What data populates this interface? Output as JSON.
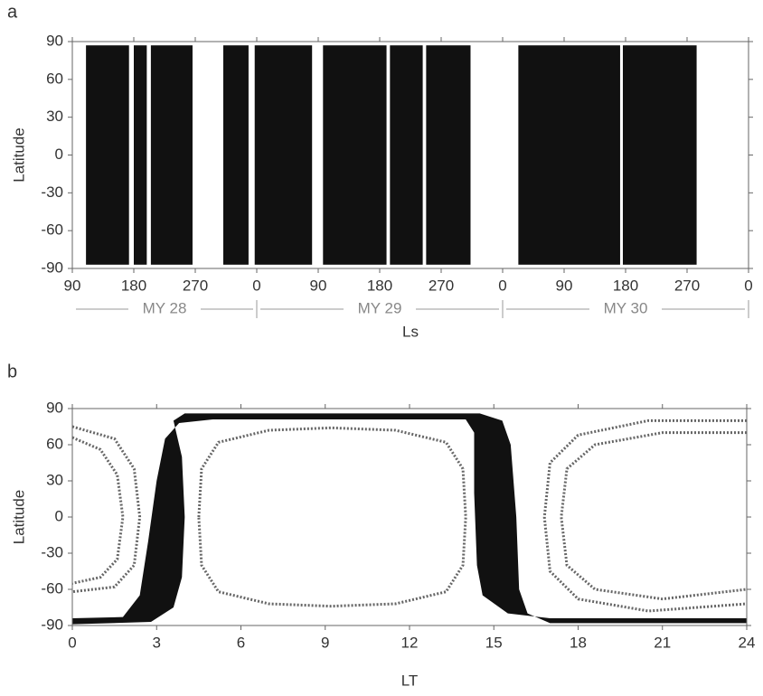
{
  "chart_data": [
    {
      "type": "coverage",
      "panel_label": "a",
      "xlabel": "Ls",
      "ylabel": "Latitude",
      "xlim": [
        90,
        1080
      ],
      "ylim": [
        -90,
        90
      ],
      "xticks": [
        90,
        180,
        270,
        {
          "value": 360,
          "label": "0"
        },
        {
          "value": 450,
          "label": "90"
        },
        {
          "value": 540,
          "label": "180"
        },
        {
          "value": 630,
          "label": "270"
        },
        {
          "value": 720,
          "label": "0"
        },
        {
          "value": 810,
          "label": "90"
        },
        {
          "value": 900,
          "label": "180"
        },
        {
          "value": 990,
          "label": "270"
        },
        {
          "value": 1080,
          "label": "0"
        }
      ],
      "yticks": [
        -90,
        -60,
        -30,
        0,
        30,
        60,
        90
      ],
      "lat_range": [
        -87,
        87
      ],
      "color": "#111",
      "intervals": [
        [
          110,
          173
        ],
        [
          180,
          199
        ],
        [
          205,
          266
        ],
        [
          311,
          348
        ],
        [
          357,
          441
        ],
        [
          457,
          550
        ],
        [
          555,
          603
        ],
        [
          608,
          673
        ],
        [
          743,
          892
        ],
        [
          896,
          1004
        ]
      ],
      "years": [
        {
          "text": "MY 28",
          "range": [
            90,
            360
          ]
        },
        {
          "text": "MY 29",
          "range": [
            360,
            720
          ]
        },
        {
          "text": "MY 30",
          "range": [
            720,
            1080
          ]
        }
      ]
    },
    {
      "type": "region",
      "panel_label": "b",
      "xlabel": "LT",
      "ylabel": "Latitude",
      "xlim": [
        0,
        24
      ],
      "ylim": [
        -90,
        90
      ],
      "xticks": [
        0,
        3,
        6,
        9,
        12,
        15,
        18,
        21,
        24
      ],
      "yticks": [
        -90,
        -60,
        -30,
        0,
        30,
        60,
        90
      ],
      "color": "#111",
      "curve_color": "#666",
      "band": {
        "x": [
          0,
          0,
          1.8,
          2.4,
          2.7,
          3.0,
          3.3,
          3.8,
          5,
          14,
          14.3,
          14.3,
          14.4,
          14.6,
          15.5,
          17,
          24,
          24,
          17,
          16.2,
          15.9,
          15.8,
          15.6,
          15.3,
          14.5,
          4,
          3.6,
          3.9,
          4.0,
          3.9,
          3.6,
          2.8
        ],
        "y": [
          -89,
          -84,
          -83,
          -65,
          -20,
          30,
          65,
          78,
          81,
          81,
          70,
          20,
          -40,
          -65,
          -80,
          -84,
          -84,
          -88,
          -88,
          -80,
          -60,
          0,
          60,
          80,
          86,
          86,
          80,
          50,
          0,
          -50,
          -75,
          -87
        ]
      },
      "curves": [
        {
          "x": [
            4.5,
            4.6,
            5.2,
            7,
            9.2,
            11.5,
            13.3,
            13.9,
            14,
            13.9,
            13.3,
            11.5,
            9.2,
            7,
            5.2,
            4.6,
            4.5
          ],
          "y": [
            0,
            40,
            62,
            72,
            74,
            72,
            62,
            40,
            0,
            -40,
            -62,
            -72,
            -74,
            -72,
            -62,
            -40,
            0
          ]
        },
        {
          "x": [
            24,
            21,
            18.6,
            17.6,
            17.4,
            17.6,
            18.6,
            21,
            24
          ],
          "y": [
            70,
            70,
            60,
            40,
            0,
            -40,
            -60,
            -68,
            -60
          ]
        },
        {
          "x": [
            24,
            20.5,
            18,
            17,
            16.8,
            17,
            18,
            20.5,
            24
          ],
          "y": [
            80,
            80,
            68,
            45,
            0,
            -45,
            -68,
            -78,
            -72
          ]
        },
        {
          "x": [
            0,
            1.5,
            2.2,
            2.4,
            2.2,
            1.5,
            0
          ],
          "y": [
            75,
            65,
            40,
            0,
            -40,
            -58,
            -62
          ]
        },
        {
          "x": [
            0,
            1.0,
            1.6,
            1.8,
            1.6,
            1.0,
            0
          ],
          "y": [
            66,
            56,
            35,
            0,
            -35,
            -50,
            -55
          ]
        }
      ]
    }
  ]
}
